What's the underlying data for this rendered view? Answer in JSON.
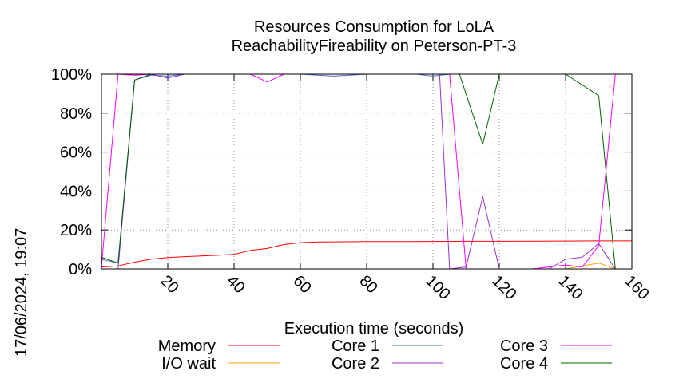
{
  "chart_data": {
    "type": "line",
    "title": "Resources Consumption for LoLA",
    "subtitle": "ReachabilityFireability on Peterson-PT-3",
    "xlabel": "Execution time (seconds)",
    "ylabel": "",
    "xlim": [
      0,
      160
    ],
    "ylim": [
      0,
      100
    ],
    "x_ticks": [
      20,
      40,
      60,
      80,
      100,
      120,
      140,
      160
    ],
    "y_ticks": [
      0,
      20,
      40,
      60,
      80,
      100
    ],
    "y_tick_labels": [
      "0%",
      "20%",
      "40%",
      "60%",
      "80%",
      "100%"
    ],
    "grid": true,
    "legend_position": "bottom",
    "timestamp": "17/06/2024, 19:07",
    "series": [
      {
        "name": "Memory",
        "color": "#ff0000",
        "points": [
          [
            0,
            1
          ],
          [
            5,
            1.5
          ],
          [
            10,
            3.5
          ],
          [
            15,
            5
          ],
          [
            20,
            5.8
          ],
          [
            25,
            6.3
          ],
          [
            30,
            6.7
          ],
          [
            35,
            7
          ],
          [
            40,
            7.5
          ],
          [
            45,
            9.5
          ],
          [
            50,
            10.5
          ],
          [
            55,
            12.5
          ],
          [
            60,
            13.5
          ],
          [
            65,
            13.8
          ],
          [
            70,
            13.9
          ],
          [
            80,
            14
          ],
          [
            90,
            14
          ],
          [
            100,
            14.1
          ],
          [
            110,
            14.2
          ],
          [
            120,
            14.2
          ],
          [
            140,
            14.3
          ],
          [
            150,
            14.4
          ],
          [
            160,
            14.4
          ]
        ]
      },
      {
        "name": "I/O wait",
        "color": "#ffa500",
        "points": [
          [
            0,
            0
          ],
          [
            5,
            0
          ],
          [
            10,
            0
          ],
          [
            100,
            0
          ],
          [
            140,
            0
          ],
          [
            145,
            1.5
          ],
          [
            150,
            3
          ],
          [
            155,
            0
          ],
          [
            160,
            0
          ]
        ]
      },
      {
        "name": "Core 1",
        "color": "#4d6ecc",
        "points": [
          [
            0,
            5
          ],
          [
            5,
            3
          ],
          [
            10,
            97
          ],
          [
            15,
            99.5
          ],
          [
            20,
            99
          ],
          [
            25,
            100
          ],
          [
            30,
            100
          ],
          [
            60,
            100
          ],
          [
            70,
            99
          ],
          [
            80,
            100
          ],
          [
            95,
            100
          ],
          [
            100,
            99
          ],
          [
            105,
            100
          ],
          [
            110,
            100
          ],
          [
            140,
            100
          ],
          [
            145,
            100
          ],
          [
            160,
            100
          ]
        ]
      },
      {
        "name": "Core 2",
        "color": "#9932cc",
        "points": [
          [
            0,
            0
          ],
          [
            5,
            0
          ],
          [
            10,
            97
          ],
          [
            15,
            100
          ],
          [
            20,
            98
          ],
          [
            25,
            100
          ],
          [
            30,
            100
          ],
          [
            100,
            100
          ],
          [
            102,
            100
          ],
          [
            105,
            0
          ],
          [
            110,
            1
          ],
          [
            115,
            37
          ],
          [
            120,
            0
          ],
          [
            125,
            0
          ],
          [
            130,
            0
          ],
          [
            135,
            0
          ],
          [
            140,
            5
          ],
          [
            145,
            6
          ],
          [
            150,
            13
          ],
          [
            155,
            0
          ],
          [
            158,
            0
          ]
        ]
      },
      {
        "name": "Core 3",
        "color": "#ff00ff",
        "points": [
          [
            0,
            1
          ],
          [
            5,
            100
          ],
          [
            10,
            99.5
          ],
          [
            15,
            100
          ],
          [
            25,
            100
          ],
          [
            45,
            100
          ],
          [
            50,
            96
          ],
          [
            55,
            100
          ],
          [
            65,
            100
          ],
          [
            105,
            100
          ],
          [
            110,
            0
          ],
          [
            120,
            0
          ],
          [
            130,
            0
          ],
          [
            140,
            2
          ],
          [
            145,
            1
          ],
          [
            150,
            12
          ],
          [
            155,
            100
          ],
          [
            160,
            100
          ]
        ]
      },
      {
        "name": "Core 4",
        "color": "#006400",
        "points": [
          [
            0,
            6
          ],
          [
            5,
            3
          ],
          [
            10,
            97
          ],
          [
            15,
            100
          ],
          [
            25,
            100
          ],
          [
            100,
            100
          ],
          [
            108,
            100
          ],
          [
            115,
            64
          ],
          [
            120,
            100
          ],
          [
            140,
            100
          ],
          [
            150,
            89
          ],
          [
            155,
            0
          ]
        ]
      }
    ]
  }
}
